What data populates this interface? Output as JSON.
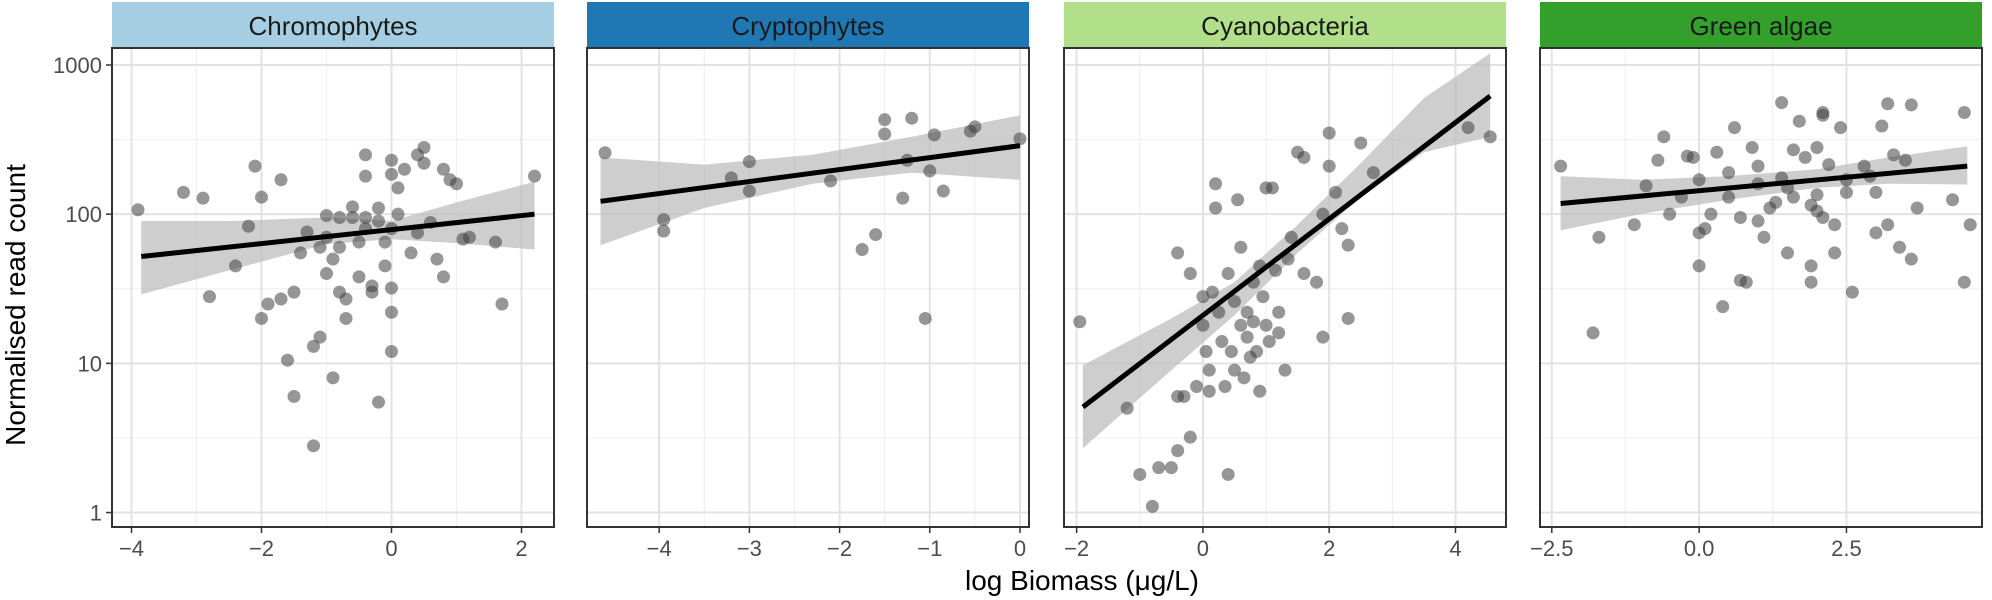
{
  "chart_data": {
    "type": "scatter",
    "xlabel": "log Biomass (μg/L)",
    "ylabel": "Normalised read count",
    "y_scale": "log10",
    "ylim": [
      0.8,
      1300
    ],
    "y_ticks": [
      1,
      10,
      100,
      1000
    ],
    "y_tick_labels": [
      "1",
      "10",
      "100",
      "1000"
    ],
    "point_color": "#404040",
    "line_color": "#000000",
    "ribbon_color": "#bdbdbd",
    "panels": [
      {
        "title": "Chromophytes",
        "strip_color": "#a6cee3",
        "strip_text_color": "#1a1a1a",
        "xlim": [
          -4.3,
          2.5
        ],
        "x_ticks": [
          -4,
          -2,
          0,
          2
        ],
        "x_tick_labels": [
          "−4",
          "−2",
          "0",
          "2"
        ],
        "fit": {
          "x0": -3.85,
          "x1": 2.2,
          "y0": 52,
          "y1": 100
        },
        "ribbon": [
          [
            -3.85,
            29,
            90
          ],
          [
            -2.5,
            42,
            90
          ],
          [
            -1.0,
            63,
            95
          ],
          [
            0.0,
            68,
            90
          ],
          [
            1.0,
            64,
            120
          ],
          [
            2.2,
            58,
            165
          ]
        ],
        "points": [
          [
            -3.9,
            107
          ],
          [
            -3.2,
            140
          ],
          [
            -2.9,
            128
          ],
          [
            -2.8,
            28
          ],
          [
            -2.4,
            45
          ],
          [
            -2.2,
            83
          ],
          [
            -2.1,
            210
          ],
          [
            -2.0,
            130
          ],
          [
            -2.0,
            20
          ],
          [
            -1.9,
            25
          ],
          [
            -1.7,
            170
          ],
          [
            -1.7,
            27
          ],
          [
            -1.6,
            10.5
          ],
          [
            -1.5,
            6
          ],
          [
            -1.5,
            30
          ],
          [
            -1.4,
            55
          ],
          [
            -1.3,
            76
          ],
          [
            -1.2,
            13
          ],
          [
            -1.2,
            2.8
          ],
          [
            -1.1,
            60
          ],
          [
            -1.1,
            15
          ],
          [
            -1.0,
            98
          ],
          [
            -1.0,
            70
          ],
          [
            -1.0,
            40
          ],
          [
            -0.9,
            8
          ],
          [
            -0.9,
            50
          ],
          [
            -0.8,
            95
          ],
          [
            -0.8,
            60
          ],
          [
            -0.8,
            30
          ],
          [
            -0.7,
            20
          ],
          [
            -0.7,
            27
          ],
          [
            -0.6,
            95
          ],
          [
            -0.6,
            112
          ],
          [
            -0.5,
            65
          ],
          [
            -0.5,
            38
          ],
          [
            -0.4,
            250
          ],
          [
            -0.4,
            180
          ],
          [
            -0.4,
            95
          ],
          [
            -0.4,
            80
          ],
          [
            -0.3,
            33
          ],
          [
            -0.3,
            30
          ],
          [
            -0.2,
            5.5
          ],
          [
            -0.2,
            110
          ],
          [
            -0.2,
            90
          ],
          [
            -0.1,
            65
          ],
          [
            -0.1,
            45
          ],
          [
            0.0,
            230
          ],
          [
            0.0,
            185
          ],
          [
            0.0,
            80
          ],
          [
            0.0,
            32
          ],
          [
            0.0,
            22
          ],
          [
            0.0,
            12
          ],
          [
            0.1,
            150
          ],
          [
            0.1,
            100
          ],
          [
            0.2,
            200
          ],
          [
            0.3,
            55
          ],
          [
            0.4,
            75
          ],
          [
            0.4,
            250
          ],
          [
            0.5,
            280
          ],
          [
            0.5,
            220
          ],
          [
            0.6,
            88
          ],
          [
            0.7,
            50
          ],
          [
            0.8,
            200
          ],
          [
            0.8,
            38
          ],
          [
            0.9,
            170
          ],
          [
            1.0,
            160
          ],
          [
            1.1,
            68
          ],
          [
            1.2,
            70
          ],
          [
            1.6,
            65
          ],
          [
            1.7,
            25
          ],
          [
            2.2,
            180
          ]
        ]
      },
      {
        "title": "Cryptophytes",
        "strip_color": "#1f78b4",
        "strip_text_color": "#1a1a1a",
        "xlim": [
          -4.8,
          0.1
        ],
        "x_ticks": [
          -4,
          -3,
          -2,
          -1,
          0
        ],
        "x_tick_labels": [
          "−4",
          "−3",
          "−2",
          "−1",
          "0"
        ],
        "fit": {
          "x0": -4.65,
          "x1": 0.0,
          "y0": 122,
          "y1": 288
        },
        "ribbon": [
          [
            -4.65,
            62,
            240
          ],
          [
            -3.5,
            110,
            215
          ],
          [
            -2.3,
            160,
            250
          ],
          [
            -1.2,
            190,
            330
          ],
          [
            0.0,
            170,
            460
          ]
        ],
        "points": [
          [
            -4.6,
            258
          ],
          [
            -3.95,
            92
          ],
          [
            -3.95,
            77
          ],
          [
            -3.2,
            175
          ],
          [
            -3.0,
            225
          ],
          [
            -3.0,
            143
          ],
          [
            -2.1,
            167
          ],
          [
            -1.75,
            58
          ],
          [
            -1.6,
            73
          ],
          [
            -1.5,
            345
          ],
          [
            -1.5,
            430
          ],
          [
            -1.3,
            128
          ],
          [
            -1.25,
            230
          ],
          [
            -1.2,
            440
          ],
          [
            -1.05,
            20
          ],
          [
            -1.0,
            195
          ],
          [
            -0.95,
            340
          ],
          [
            -0.85,
            143
          ],
          [
            -0.55,
            360
          ],
          [
            -0.5,
            385
          ],
          [
            0.0,
            320
          ]
        ]
      },
      {
        "title": "Cyanobacteria",
        "strip_color": "#b2df8a",
        "strip_text_color": "#1a1a1a",
        "xlim": [
          -2.2,
          4.8
        ],
        "x_ticks": [
          -2,
          0,
          2,
          4
        ],
        "x_tick_labels": [
          "−2",
          "0",
          "2",
          "4"
        ],
        "fit": {
          "x0": -1.9,
          "x1": 4.55,
          "y0": 5.1,
          "y1": 620
        },
        "ribbon": [
          [
            -1.9,
            2.7,
            9.7
          ],
          [
            -0.5,
            9,
            20
          ],
          [
            0.5,
            21,
            35
          ],
          [
            1.5,
            55,
            85
          ],
          [
            2.5,
            130,
            220
          ],
          [
            3.5,
            260,
            600
          ],
          [
            4.55,
            330,
            1200
          ]
        ],
        "points": [
          [
            -1.95,
            19
          ],
          [
            -1.2,
            5
          ],
          [
            -1.0,
            1.8
          ],
          [
            -0.8,
            1.1
          ],
          [
            -0.7,
            2
          ],
          [
            -0.5,
            2
          ],
          [
            -0.4,
            6
          ],
          [
            -0.4,
            2.6
          ],
          [
            -0.4,
            55
          ],
          [
            -0.3,
            6
          ],
          [
            -0.2,
            3.2
          ],
          [
            -0.2,
            40
          ],
          [
            -0.1,
            7
          ],
          [
            0.0,
            28
          ],
          [
            0.0,
            18
          ],
          [
            0.05,
            12
          ],
          [
            0.1,
            9
          ],
          [
            0.1,
            6.5
          ],
          [
            0.15,
            30
          ],
          [
            0.2,
            160
          ],
          [
            0.2,
            110
          ],
          [
            0.25,
            22
          ],
          [
            0.3,
            14
          ],
          [
            0.35,
            7
          ],
          [
            0.4,
            1.8
          ],
          [
            0.4,
            40
          ],
          [
            0.45,
            12
          ],
          [
            0.5,
            9
          ],
          [
            0.5,
            26
          ],
          [
            0.55,
            125
          ],
          [
            0.6,
            60
          ],
          [
            0.6,
            18
          ],
          [
            0.65,
            8
          ],
          [
            0.7,
            15
          ],
          [
            0.7,
            22
          ],
          [
            0.75,
            11
          ],
          [
            0.8,
            35
          ],
          [
            0.8,
            19
          ],
          [
            0.85,
            12
          ],
          [
            0.9,
            45
          ],
          [
            0.9,
            6.5
          ],
          [
            0.95,
            28
          ],
          [
            1.0,
            150
          ],
          [
            1.0,
            18
          ],
          [
            1.05,
            14
          ],
          [
            1.1,
            150
          ],
          [
            1.15,
            42
          ],
          [
            1.2,
            22
          ],
          [
            1.2,
            16
          ],
          [
            1.3,
            9
          ],
          [
            1.35,
            50
          ],
          [
            1.4,
            70
          ],
          [
            1.5,
            260
          ],
          [
            1.6,
            240
          ],
          [
            1.6,
            40
          ],
          [
            1.8,
            35
          ],
          [
            1.9,
            15
          ],
          [
            1.9,
            100
          ],
          [
            2.0,
            350
          ],
          [
            2.0,
            210
          ],
          [
            2.1,
            140
          ],
          [
            2.2,
            80
          ],
          [
            2.3,
            62
          ],
          [
            2.3,
            20
          ],
          [
            2.5,
            300
          ],
          [
            2.7,
            190
          ],
          [
            4.2,
            380
          ],
          [
            4.55,
            330
          ]
        ]
      },
      {
        "title": "Green algae",
        "strip_color": "#33a02c",
        "strip_text_color": "#1a1a1a",
        "xlim": [
          -2.7,
          4.8
        ],
        "x_ticks": [
          -2.5,
          0.0,
          2.5
        ],
        "x_tick_labels": [
          "−2.5",
          "0.0",
          "2.5"
        ],
        "fit": {
          "x0": -2.35,
          "x1": 4.55,
          "y0": 118,
          "y1": 210
        },
        "ribbon": [
          [
            -2.35,
            78,
            180
          ],
          [
            -1.0,
            100,
            170
          ],
          [
            0.5,
            125,
            180
          ],
          [
            2.0,
            150,
            200
          ],
          [
            3.2,
            160,
            240
          ],
          [
            4.55,
            158,
            285
          ]
        ],
        "points": [
          [
            -2.35,
            210
          ],
          [
            -1.8,
            16
          ],
          [
            -1.7,
            70
          ],
          [
            -1.1,
            85
          ],
          [
            -0.9,
            155
          ],
          [
            -0.7,
            230
          ],
          [
            -0.6,
            330
          ],
          [
            -0.5,
            100
          ],
          [
            -0.3,
            130
          ],
          [
            -0.2,
            245
          ],
          [
            -0.1,
            240
          ],
          [
            0.0,
            170
          ],
          [
            0.0,
            75
          ],
          [
            0.0,
            45
          ],
          [
            0.1,
            80
          ],
          [
            0.2,
            100
          ],
          [
            0.3,
            260
          ],
          [
            0.4,
            24
          ],
          [
            0.5,
            190
          ],
          [
            0.5,
            130
          ],
          [
            0.6,
            380
          ],
          [
            0.7,
            95
          ],
          [
            0.7,
            36
          ],
          [
            0.8,
            35
          ],
          [
            0.9,
            280
          ],
          [
            1.0,
            210
          ],
          [
            1.0,
            160
          ],
          [
            1.0,
            90
          ],
          [
            1.1,
            70
          ],
          [
            1.2,
            110
          ],
          [
            1.3,
            120
          ],
          [
            1.4,
            175
          ],
          [
            1.4,
            560
          ],
          [
            1.5,
            150
          ],
          [
            1.5,
            55
          ],
          [
            1.6,
            130
          ],
          [
            1.6,
            270
          ],
          [
            1.7,
            420
          ],
          [
            1.8,
            240
          ],
          [
            1.9,
            35
          ],
          [
            1.9,
            115
          ],
          [
            1.9,
            45
          ],
          [
            2.0,
            280
          ],
          [
            2.0,
            135
          ],
          [
            2.0,
            105
          ],
          [
            2.1,
            480
          ],
          [
            2.1,
            460
          ],
          [
            2.1,
            95
          ],
          [
            2.2,
            215
          ],
          [
            2.3,
            85
          ],
          [
            2.3,
            55
          ],
          [
            2.4,
            380
          ],
          [
            2.5,
            170
          ],
          [
            2.5,
            140
          ],
          [
            2.6,
            30
          ],
          [
            2.8,
            210
          ],
          [
            2.9,
            180
          ],
          [
            3.0,
            75
          ],
          [
            3.0,
            140
          ],
          [
            3.1,
            390
          ],
          [
            3.2,
            550
          ],
          [
            3.2,
            85
          ],
          [
            3.3,
            250
          ],
          [
            3.4,
            60
          ],
          [
            3.5,
            230
          ],
          [
            3.6,
            540
          ],
          [
            3.6,
            50
          ],
          [
            3.7,
            110
          ],
          [
            4.3,
            125
          ],
          [
            4.5,
            480
          ],
          [
            4.5,
            35
          ],
          [
            4.6,
            85
          ]
        ]
      }
    ]
  }
}
